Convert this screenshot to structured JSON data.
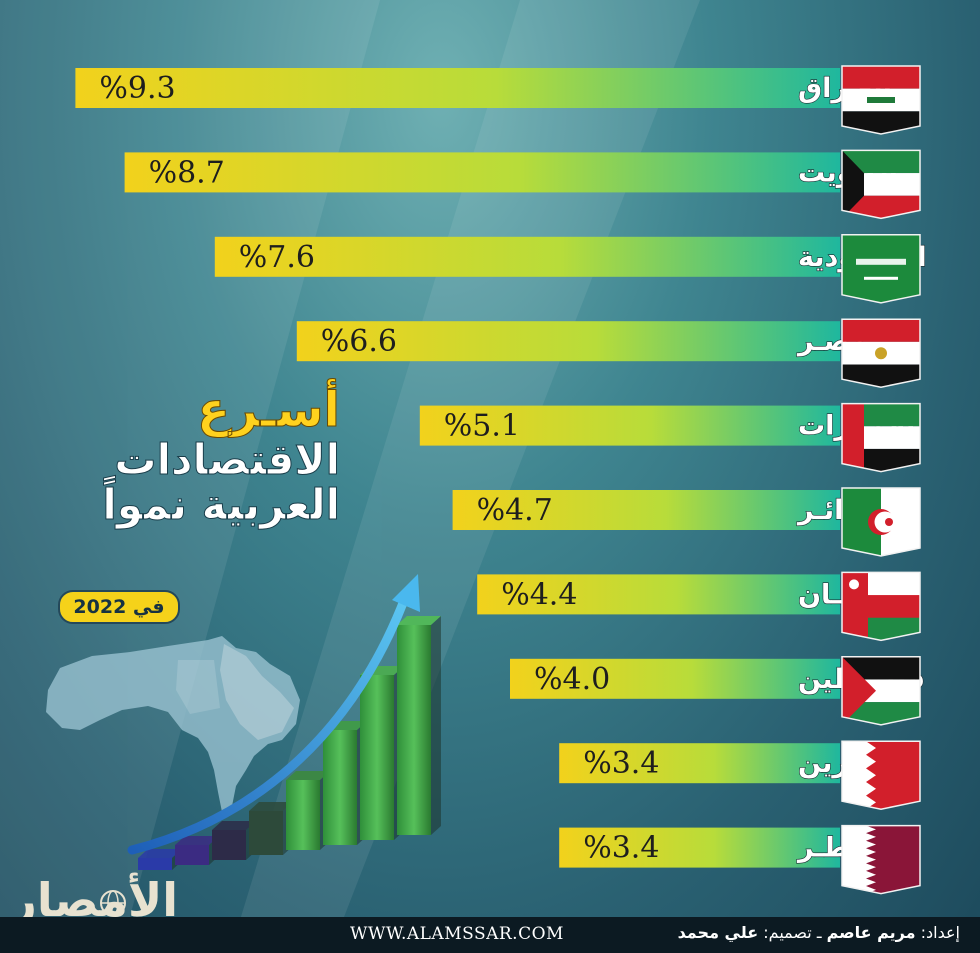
{
  "title": {
    "line1": "أسـرع",
    "line2": "الاقتصادات",
    "line3": "العربية نمواً",
    "badge": "في 2022"
  },
  "chart_data": {
    "type": "bar",
    "orientation": "horizontal",
    "categories": [
      "العـراق",
      "الكـويت",
      "السعـودية",
      "مصـر",
      "الإمـارات",
      "الجزائـر",
      "عمـان",
      "فلسـطين",
      "البحـرين",
      "قطـر"
    ],
    "values": [
      9.3,
      8.7,
      7.6,
      6.6,
      5.1,
      4.7,
      4.4,
      4.0,
      3.4,
      3.4
    ],
    "value_labels": [
      "%9.3",
      "%8.7",
      "%7.6",
      "%6.6",
      "%5.1",
      "%4.7",
      "%4.4",
      "%4.0",
      "%3.4",
      "%3.4"
    ],
    "flags": [
      "iraq-flag",
      "kuwait-flag",
      "saudi-flag",
      "egypt-flag",
      "uae-flag",
      "algeria-flag",
      "oman-flag",
      "palestine-flag",
      "bahrain-flag",
      "qatar-flag"
    ],
    "bar_gradient": [
      "#22b8a0",
      "#c9e03a",
      "#f2d21c"
    ],
    "xlim": [
      0,
      10
    ]
  },
  "decor": {
    "growth_bars": 8,
    "arrow_color": "#3aa6e8"
  },
  "logo": {
    "text": "الأمصار"
  },
  "footer": {
    "url": "WWW.ALAMSSAR.COM",
    "prepared_label": "إعداد:",
    "prepared_name": "مريم عاصم",
    "design_label": "تصميم:",
    "design_name": "علي محمد"
  }
}
